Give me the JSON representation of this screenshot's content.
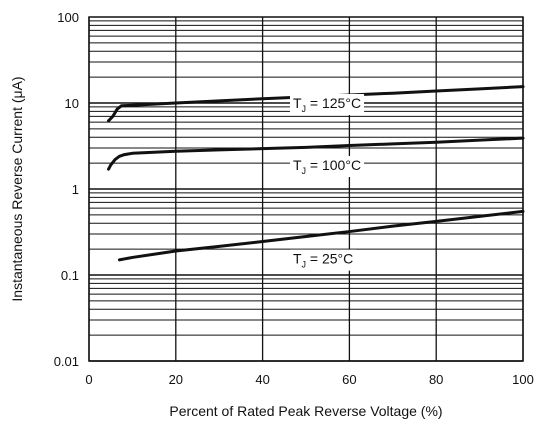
{
  "chart_data": {
    "type": "line",
    "title": "",
    "xlabel": "Percent of Rated Peak Reverse Voltage (%)",
    "ylabel": "Instantaneous Reverse Current (μA)",
    "xlim": [
      0,
      100
    ],
    "ylim": [
      0.01,
      100
    ],
    "yscale": "log",
    "grid": true,
    "x_ticks": [
      {
        "value": 0,
        "label": "0"
      },
      {
        "value": 20,
        "label": "20"
      },
      {
        "value": 40,
        "label": "40"
      },
      {
        "value": 60,
        "label": "60"
      },
      {
        "value": 80,
        "label": "80"
      },
      {
        "value": 100,
        "label": "100"
      }
    ],
    "y_ticks": [
      {
        "value": 0.01,
        "label": "0.01"
      },
      {
        "value": 0.1,
        "label": "0.1"
      },
      {
        "value": 1,
        "label": "1"
      },
      {
        "value": 10,
        "label": "10"
      },
      {
        "value": 100,
        "label": "100"
      }
    ],
    "series": [
      {
        "name": "TJ = 125°C",
        "label_main": "T",
        "label_sub": "J",
        "label_rest": " = 125°C",
        "label_anchor": [
          47,
          10
        ],
        "x": [
          4.5,
          5.5,
          6.5,
          7.5,
          10,
          20,
          30,
          40,
          50,
          60,
          70,
          80,
          90,
          100
        ],
        "y": [
          6.2,
          7.0,
          8.5,
          9.3,
          9.4,
          10.0,
          10.6,
          11.2,
          11.8,
          12.4,
          13.0,
          13.8,
          14.6,
          15.5
        ]
      },
      {
        "name": "TJ = 100°C",
        "label_main": "T",
        "label_sub": "J",
        "label_rest": " = 100°C",
        "label_anchor": [
          47,
          1.9
        ],
        "x": [
          4.5,
          5,
          6,
          7,
          8,
          9,
          10,
          20,
          30,
          40,
          50,
          60,
          70,
          80,
          90,
          100
        ],
        "y": [
          1.7,
          1.9,
          2.2,
          2.4,
          2.5,
          2.55,
          2.6,
          2.75,
          2.85,
          2.95,
          3.05,
          3.2,
          3.35,
          3.5,
          3.7,
          3.9
        ]
      },
      {
        "name": "TJ = 25°C",
        "label_main": "T",
        "label_sub": "J",
        "label_rest": " = 25°C",
        "label_anchor": [
          47,
          0.155
        ],
        "x": [
          7,
          10,
          20,
          30,
          40,
          50,
          60,
          70,
          80,
          90,
          100
        ],
        "y": [
          0.15,
          0.16,
          0.19,
          0.215,
          0.245,
          0.28,
          0.32,
          0.37,
          0.42,
          0.48,
          0.55
        ]
      }
    ],
    "line_color": "#111111",
    "grid_color": "#111111",
    "background": "#ffffff"
  }
}
